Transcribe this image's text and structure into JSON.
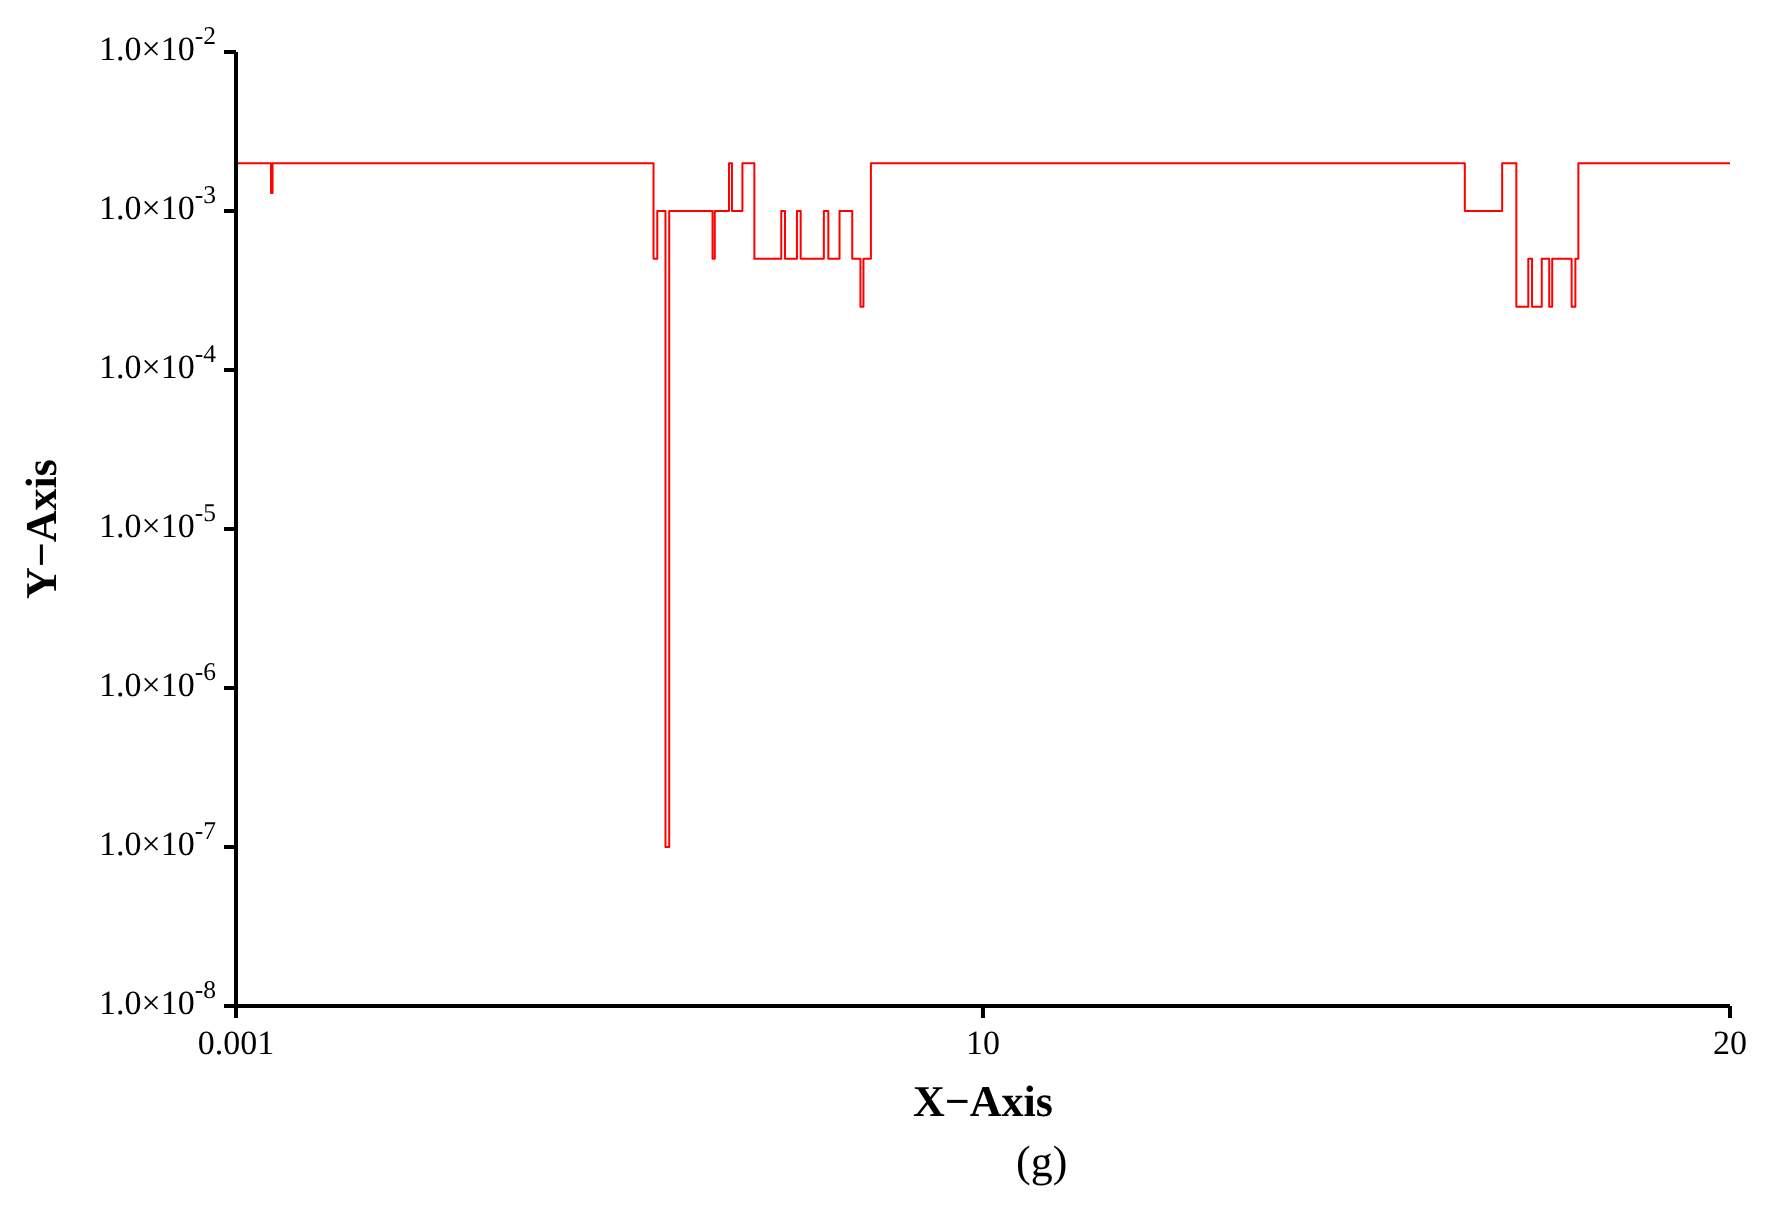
{
  "chart_data": {
    "type": "line",
    "xlabel": "X−Axis",
    "ylabel": "Y−Axis",
    "annotations": [
      "(g)"
    ],
    "x": [
      0.001,
      0.47,
      0.47,
      0.49,
      0.49,
      5.59,
      5.59,
      5.64,
      5.64,
      5.75,
      5.75,
      5.8,
      5.8,
      6.38,
      6.38,
      6.41,
      6.41,
      6.6,
      6.6,
      6.64,
      6.64,
      6.78,
      6.78,
      6.94,
      6.94,
      7.3,
      7.3,
      7.35,
      7.35,
      7.51,
      7.51,
      7.56,
      7.56,
      7.87,
      7.87,
      7.93,
      7.93,
      8.08,
      8.08,
      8.25,
      8.25,
      8.36,
      8.36,
      8.4,
      8.4,
      8.5,
      8.5,
      16.45,
      16.45,
      16.95,
      16.95,
      17.14,
      17.14,
      17.3,
      17.3,
      17.35,
      17.35,
      17.48,
      17.48,
      17.58,
      17.58,
      17.62,
      17.62,
      17.88,
      17.88,
      17.93,
      17.93,
      17.97,
      17.97,
      20
    ],
    "series": [
      {
        "color": "#ff0000",
        "values": [
          0.002,
          0.002,
          0.0013,
          0.0013,
          0.002,
          0.002,
          0.0005,
          0.0005,
          0.001,
          0.001,
          1e-07,
          1e-07,
          0.001,
          0.001,
          0.0005,
          0.0005,
          0.001,
          0.001,
          0.002,
          0.002,
          0.001,
          0.001,
          0.002,
          0.002,
          0.0005,
          0.0005,
          0.001,
          0.001,
          0.0005,
          0.0005,
          0.001,
          0.001,
          0.0005,
          0.0005,
          0.001,
          0.001,
          0.0005,
          0.0005,
          0.001,
          0.001,
          0.0005,
          0.0005,
          0.00025,
          0.00025,
          0.0005,
          0.0005,
          0.002,
          0.002,
          0.001,
          0.001,
          0.002,
          0.002,
          0.00025,
          0.00025,
          0.0005,
          0.0005,
          0.00025,
          0.00025,
          0.0005,
          0.0005,
          0.00025,
          0.00025,
          0.0005,
          0.0005,
          0.00025,
          0.00025,
          0.0005,
          0.0005,
          0.002,
          0.002
        ]
      }
    ],
    "xlim": [
      0.001,
      20
    ],
    "xticks": [
      0.001,
      10,
      20
    ],
    "ylim": [
      1e-08,
      0.01
    ],
    "log": "y",
    "yticks": [
      {
        "value": 1e-08,
        "label": "1.0×10$^{-8}$"
      },
      {
        "value": 1e-07,
        "label": "1.0×10$^{-7}$"
      },
      {
        "value": 1e-06,
        "label": "1.0×10$^{-6}$"
      },
      {
        "value": 1e-05,
        "label": "1.0×10$^{-5}$"
      },
      {
        "value": 0.0001,
        "label": "1.0×10$^{-4}$"
      },
      {
        "value": 0.001,
        "label": "1.0×10$^{-3}$"
      },
      {
        "value": 0.01,
        "label": "1.0×10$^{-2}$"
      }
    ],
    "grid": false,
    "legend": false,
    "marker": "none",
    "line_style": "solid"
  }
}
